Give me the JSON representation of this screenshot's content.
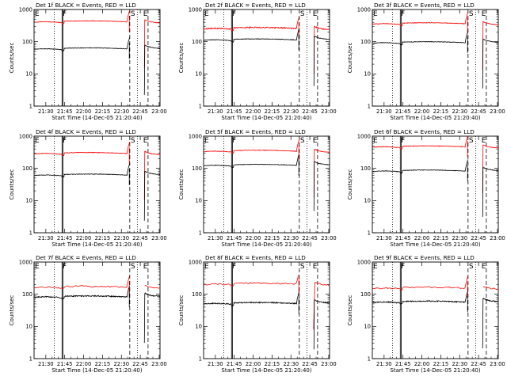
{
  "chart_data": [
    {
      "type": "line",
      "title": "Det 1f  BLACK = Events, RED = LLD",
      "xlabel": "Start Time (14-Dec-05 21:20:40)",
      "ylabel": "Counts/sec",
      "x_ticks": [
        "21:30",
        "21:45",
        "22:00",
        "22:15",
        "22:30",
        "22:45",
        "23:00"
      ],
      "x_range_minutes": [
        0,
        100
      ],
      "y_scale": "log",
      "ylim": [
        1,
        1000
      ],
      "y_ticks": [
        "1",
        "10",
        "100",
        "1000"
      ],
      "markers": [
        {
          "label": "E",
          "x": 0
        },
        {
          "label": "F",
          "x": 22
        },
        {
          "label": "S",
          "x": 76
        },
        {
          "label": "E",
          "x": 86
        }
      ],
      "series": [
        {
          "color": "#ff0000",
          "baseline": 400,
          "step": 0.3,
          "noise": 0.02
        },
        {
          "color": "#000000",
          "baseline": 58,
          "step": 0.3,
          "noise": 0.02
        }
      ]
    },
    {
      "type": "line",
      "title": "Det 2f  BLACK = Events, RED = LLD",
      "xlabel": "Start Time (14-Dec-05 21:20:40)",
      "ylabel": "Counts/sec",
      "x_ticks": [
        "21:30",
        "21:45",
        "22:00",
        "22:15",
        "22:30",
        "22:45",
        "23:00"
      ],
      "x_range_minutes": [
        0,
        100
      ],
      "y_scale": "log",
      "ylim": [
        1,
        1000
      ],
      "y_ticks": [
        "1",
        "10",
        "100",
        "1000"
      ],
      "markers": [
        {
          "label": "E",
          "x": 0
        },
        {
          "label": "F",
          "x": 22
        },
        {
          "label": "S",
          "x": 76
        },
        {
          "label": "E",
          "x": 86
        }
      ],
      "series": [
        {
          "color": "#ff0000",
          "baseline": 250,
          "step": 0.3,
          "noise": 0.04
        },
        {
          "color": "#000000",
          "baseline": 110,
          "step": 0.3,
          "noise": 0.02
        }
      ]
    },
    {
      "type": "line",
      "title": "Det 3f  BLACK = Events, RED = LLD",
      "xlabel": "Start Time (14-Dec-05 21:20:40)",
      "ylabel": "Counts/sec",
      "x_ticks": [
        "21:30",
        "21:45",
        "22:00",
        "22:15",
        "22:30",
        "22:45",
        "23:00"
      ],
      "x_range_minutes": [
        0,
        100
      ],
      "y_scale": "log",
      "ylim": [
        1,
        1000
      ],
      "y_ticks": [
        "1",
        "10",
        "100",
        "1000"
      ],
      "markers": [
        {
          "label": "E",
          "x": 0
        },
        {
          "label": "F",
          "x": 22
        },
        {
          "label": "S",
          "x": 76
        },
        {
          "label": "E",
          "x": 86
        }
      ],
      "series": [
        {
          "color": "#ff0000",
          "baseline": 350,
          "step": 0.3,
          "noise": 0.02
        },
        {
          "color": "#000000",
          "baseline": 90,
          "step": 0.3,
          "noise": 0.02
        }
      ]
    },
    {
      "type": "line",
      "title": "Det 4f  BLACK = Events, RED = LLD",
      "xlabel": "Start Time (14-Dec-05 21:20:40)",
      "ylabel": "Counts/sec",
      "x_ticks": [
        "21:30",
        "21:45",
        "22:00",
        "22:15",
        "22:30",
        "22:45",
        "23:00"
      ],
      "x_range_minutes": [
        0,
        100
      ],
      "y_scale": "log",
      "ylim": [
        1,
        1000
      ],
      "y_ticks": [
        "1",
        "10",
        "100",
        "1000"
      ],
      "markers": [
        {
          "label": "E",
          "x": 0
        },
        {
          "label": "F",
          "x": 22
        },
        {
          "label": "S",
          "x": 76
        },
        {
          "label": "E",
          "x": 86
        }
      ],
      "series": [
        {
          "color": "#ff0000",
          "baseline": 280,
          "step": 0.3,
          "noise": 0.02
        },
        {
          "color": "#000000",
          "baseline": 60,
          "step": 0.3,
          "noise": 0.02
        }
      ]
    },
    {
      "type": "line",
      "title": "Det 5f  BLACK = Events, RED = LLD",
      "xlabel": "Start Time (14-Dec-05 21:20:40)",
      "ylabel": "Counts/sec",
      "x_ticks": [
        "21:30",
        "21:45",
        "22:00",
        "22:15",
        "22:30",
        "22:45",
        "23:00"
      ],
      "x_range_minutes": [
        0,
        100
      ],
      "y_scale": "log",
      "ylim": [
        1,
        1000
      ],
      "y_ticks": [
        "1",
        "10",
        "100",
        "1000"
      ],
      "markers": [
        {
          "label": "E",
          "x": 0
        },
        {
          "label": "F",
          "x": 22
        },
        {
          "label": "S",
          "x": 76
        },
        {
          "label": "E",
          "x": 86
        }
      ],
      "series": [
        {
          "color": "#ff0000",
          "baseline": 330,
          "step": 0.3,
          "noise": 0.02
        },
        {
          "color": "#000000",
          "baseline": 120,
          "step": 0.3,
          "noise": 0.02
        }
      ]
    },
    {
      "type": "line",
      "title": "Det 6f  BLACK = Events, RED = LLD",
      "xlabel": "Start Time (14-Dec-05 21:20:40)",
      "ylabel": "Counts/sec",
      "x_ticks": [
        "21:30",
        "21:45",
        "22:00",
        "22:15",
        "22:30",
        "22:45",
        "23:00"
      ],
      "x_range_minutes": [
        0,
        100
      ],
      "y_scale": "log",
      "ylim": [
        1,
        1000
      ],
      "y_ticks": [
        "1",
        "10",
        "100",
        "1000"
      ],
      "markers": [
        {
          "label": "E",
          "x": 0
        },
        {
          "label": "F",
          "x": 22
        },
        {
          "label": "S",
          "x": 76
        },
        {
          "label": "E",
          "x": 86
        }
      ],
      "series": [
        {
          "color": "#ff0000",
          "baseline": 450,
          "step": 0.3,
          "noise": 0.02
        },
        {
          "color": "#000000",
          "baseline": 80,
          "step": 0.3,
          "noise": 0.02
        }
      ]
    },
    {
      "type": "line",
      "title": "Det 7f  BLACK = Events, RED = LLD",
      "xlabel": "Start Time (14-Dec-05 21:20:40)",
      "ylabel": "Counts/sec",
      "x_ticks": [
        "21:30",
        "21:45",
        "22:00",
        "22:15",
        "22:30",
        "22:45",
        "23:00"
      ],
      "x_range_minutes": [
        0,
        100
      ],
      "y_scale": "log",
      "ylim": [
        1,
        1000
      ],
      "y_ticks": [
        "1",
        "10",
        "100",
        "1000"
      ],
      "markers": [
        {
          "label": "E",
          "x": 0
        },
        {
          "label": "F",
          "x": 22
        },
        {
          "label": "S",
          "x": 76
        },
        {
          "label": "E",
          "x": 86
        }
      ],
      "series": [
        {
          "color": "#ff0000",
          "baseline": 160,
          "step": 1.2,
          "noise": 0.05
        },
        {
          "color": "#000000",
          "baseline": 80,
          "step": 0.3,
          "noise": 0.04
        }
      ]
    },
    {
      "type": "line",
      "title": "Det 8f  BLACK = Events, RED = LLD",
      "xlabel": "Start Time (14-Dec-05 21:20:40)",
      "ylabel": "Counts/sec",
      "x_ticks": [
        "21:30",
        "21:45",
        "22:00",
        "22:15",
        "22:30",
        "22:45",
        "23:00"
      ],
      "x_range_minutes": [
        0,
        100
      ],
      "y_scale": "log",
      "ylim": [
        1,
        1000
      ],
      "y_ticks": [
        "1",
        "10",
        "100",
        "1000"
      ],
      "markers": [
        {
          "label": "E",
          "x": 0
        },
        {
          "label": "F",
          "x": 22
        },
        {
          "label": "S",
          "x": 76
        },
        {
          "label": "E",
          "x": 86
        }
      ],
      "series": [
        {
          "color": "#ff0000",
          "baseline": 200,
          "step": 1.0,
          "noise": 0.05
        },
        {
          "color": "#000000",
          "baseline": 50,
          "step": 0.3,
          "noise": 0.04
        }
      ]
    },
    {
      "type": "line",
      "title": "Det 9f  BLACK = Events, RED = LLD",
      "xlabel": "Start Time (14-Dec-05 21:20:40)",
      "ylabel": "Counts/sec",
      "x_ticks": [
        "21:30",
        "21:45",
        "22:00",
        "22:15",
        "22:30",
        "22:45",
        "23:00"
      ],
      "x_range_minutes": [
        0,
        100
      ],
      "y_scale": "log",
      "ylim": [
        1,
        1000
      ],
      "y_ticks": [
        "1",
        "10",
        "100",
        "1000"
      ],
      "markers": [
        {
          "label": "E",
          "x": 0
        },
        {
          "label": "F",
          "x": 22
        },
        {
          "label": "S",
          "x": 76
        },
        {
          "label": "E",
          "x": 86
        }
      ],
      "series": [
        {
          "color": "#ff0000",
          "baseline": 150,
          "step": 1.2,
          "noise": 0.05
        },
        {
          "color": "#000000",
          "baseline": 55,
          "step": 0.3,
          "noise": 0.04
        }
      ]
    }
  ]
}
